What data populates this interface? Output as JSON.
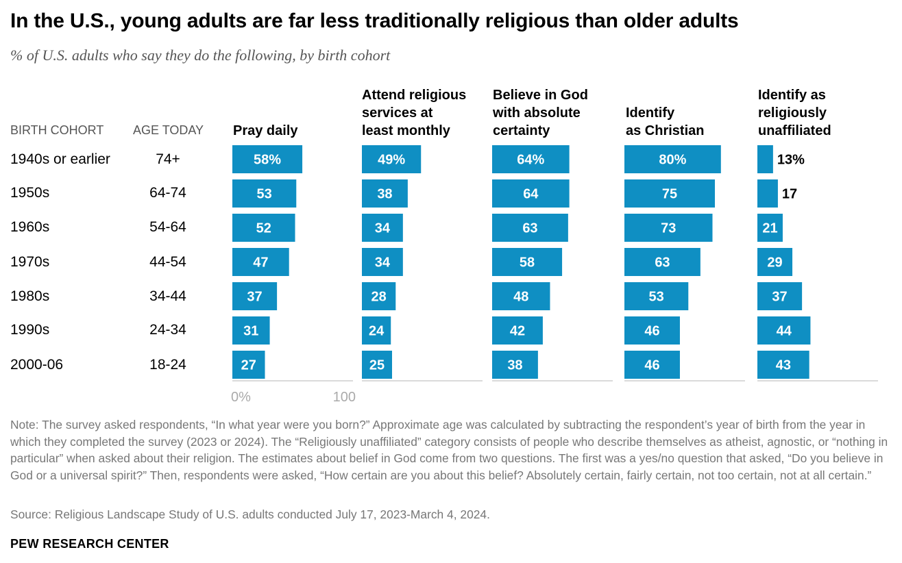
{
  "title": "In the U.S., young adults are far less traditionally religious than older adults",
  "subtitle": "% of U.S. adults who say they do the following, by birth cohort",
  "col_headers": {
    "cohort": "BIRTH COHORT",
    "age": "AGE TODAY"
  },
  "axis": {
    "min_label": "0%",
    "max_label": "100"
  },
  "colors": {
    "bar": "#0f8fc3",
    "axis": "#b5b5b5",
    "label_inside": "#ffffff",
    "label_outside": "#000000"
  },
  "note": "Note: The survey asked respondents, “In what year were you born?” Approximate age was calculated by subtracting the respondent’s year of birth from the year in which they completed the survey (2023 or 2024). The “Religiously unaffiliated” category consists of people who describe themselves as atheist, agnostic, or “nothing in particular” when asked about their religion. The estimates about belief in God come from two questions. The first was a yes/no question that asked, “Do you believe in God or a universal spirit?” Then, respondents were asked, “How certain are you about this belief? Absolutely certain, fairly certain, not too certain, not at all certain.”",
  "source": "Source: Religious Landscape Study of U.S. adults conducted July 17, 2023-March 4, 2024.",
  "brand": "PEW RESEARCH CENTER",
  "chart_data": {
    "type": "bar",
    "orientation": "horizontal",
    "unit": "%",
    "xlim": [
      0,
      100
    ],
    "categories": [
      "1940s or earlier",
      "1950s",
      "1960s",
      "1970s",
      "1980s",
      "1990s",
      "2000-06"
    ],
    "ages": [
      "74+",
      "64-74",
      "54-64",
      "44-54",
      "34-44",
      "24-34",
      "18-24"
    ],
    "series": [
      {
        "name": "Pray daily",
        "values": [
          58,
          53,
          52,
          47,
          37,
          31,
          27
        ]
      },
      {
        "name": "Attend religious\nservices at\nleast monthly",
        "values": [
          49,
          38,
          34,
          34,
          28,
          24,
          25
        ]
      },
      {
        "name": "Believe in God\nwith absolute\ncertainty",
        "values": [
          64,
          64,
          63,
          58,
          48,
          42,
          38
        ]
      },
      {
        "name": "Identify\nas Christian",
        "values": [
          80,
          75,
          73,
          63,
          53,
          46,
          46
        ]
      },
      {
        "name": "Identify as\nreligiously\nunaffiliated",
        "values": [
          13,
          17,
          21,
          29,
          37,
          44,
          43
        ]
      }
    ]
  }
}
